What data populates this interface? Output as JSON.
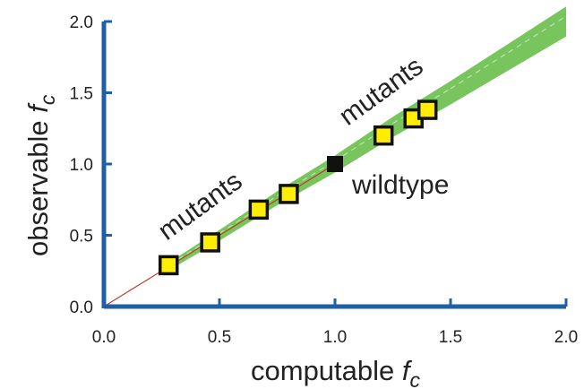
{
  "chart_data": {
    "type": "scatter",
    "xlabel": {
      "text": "computable ",
      "italic": "f",
      "sub": "c"
    },
    "ylabel": {
      "text": "observable ",
      "italic": "f",
      "sub": "c"
    },
    "xlim": [
      0,
      2
    ],
    "ylim": [
      0,
      2
    ],
    "xticks": [
      "0.0",
      "0.5",
      "1.0",
      "1.5",
      "2.0"
    ],
    "yticks": [
      "0.0",
      "0.5",
      "1.0",
      "1.5",
      "2.0"
    ],
    "grid": false,
    "annotations": {
      "mutants_low": "mutants",
      "mutants_high": "mutants",
      "wildtype": "wildtype"
    },
    "series": [
      {
        "marker": "square",
        "color": "#ffee00",
        "edge": "#111111",
        "x": [
          0.28,
          0.46,
          0.67,
          0.8,
          1.21,
          1.34,
          1.4
        ],
        "y": [
          0.29,
          0.45,
          0.68,
          0.79,
          1.2,
          1.32,
          1.38
        ]
      },
      {
        "marker": "square",
        "color": "#111111",
        "x": [
          1.0
        ],
        "y": [
          1.0
        ]
      }
    ],
    "band": {
      "color": "#6abf4b",
      "x": [
        0.25,
        0.5,
        0.75,
        1.0,
        1.25,
        1.5,
        1.75,
        2.0
      ],
      "y": [
        0.25,
        0.5,
        0.76,
        1.0,
        1.26,
        1.5,
        1.75,
        2.0
      ]
    },
    "diagonal": {
      "color": "#c0392b",
      "x": [
        0,
        1
      ],
      "y": [
        0,
        1
      ]
    },
    "axis_color": "#1f5fa8"
  }
}
